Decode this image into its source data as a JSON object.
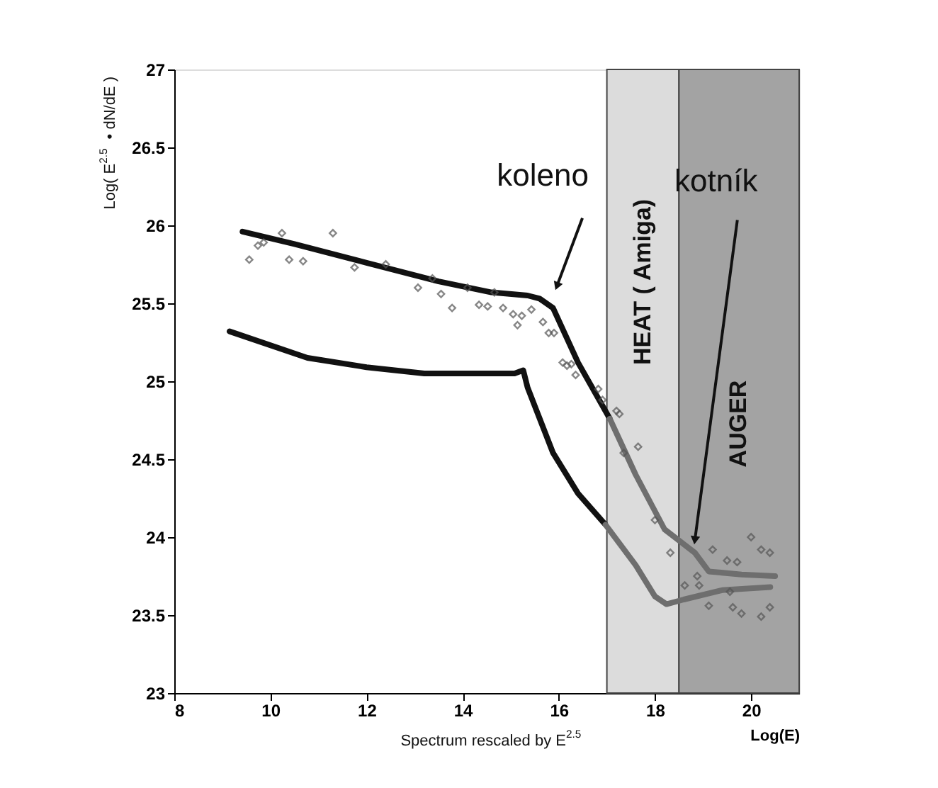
{
  "chart_data": {
    "type": "line",
    "xlabel": "Log(E)",
    "ylabel": "Log( E$^{2.5}$ • dN/dE )",
    "xlim": [
      8,
      21
    ],
    "xticks": [
      8,
      10,
      12,
      14,
      16,
      18,
      20
    ],
    "ylim": [
      23,
      27
    ],
    "yticks": [
      23,
      23.5,
      24,
      24.5,
      25,
      25.5,
      26,
      26.5,
      27
    ],
    "grid": false,
    "line_style": "solid",
    "series": [
      {
        "color": "#111111",
        "x": [
          9.42,
          10.5,
          12.0,
          13.5,
          14.6,
          15.35,
          15.6,
          15.88,
          16.4,
          17.06
        ],
        "values": [
          25.96,
          25.88,
          25.76,
          25.64,
          25.57,
          25.55,
          25.53,
          25.47,
          25.12,
          24.76
        ]
      },
      {
        "color": "#6e6e6e",
        "x": [
          17.06,
          17.6,
          18.2,
          18.83,
          19.12,
          19.8,
          20.5
        ],
        "values": [
          24.76,
          24.4,
          24.05,
          23.9,
          23.78,
          23.76,
          23.75
        ]
      },
      {
        "color": "#111111",
        "x": [
          9.15,
          10.77,
          12.0,
          13.2,
          15.08,
          15.26,
          15.35,
          15.88,
          16.4,
          16.97
        ],
        "values": [
          25.32,
          25.15,
          25.09,
          25.05,
          25.05,
          25.07,
          24.96,
          24.54,
          24.28,
          24.08
        ]
      },
      {
        "color": "#6e6e6e",
        "x": [
          16.97,
          17.6,
          18.0,
          18.24,
          18.6,
          19.4,
          20.4
        ],
        "values": [
          24.08,
          23.82,
          23.62,
          23.57,
          23.6,
          23.66,
          23.68
        ]
      },
      {
        "type": "scatter",
        "color": "#555555",
        "marker": "diamond",
        "x": [
          9.56,
          9.74,
          9.86,
          10.24,
          10.39,
          10.68,
          11.3,
          11.75,
          12.4,
          13.07,
          13.37,
          13.55,
          13.78,
          14.1,
          14.34,
          14.52,
          14.66,
          14.84,
          15.05,
          15.14,
          15.23,
          15.43,
          15.67,
          15.79,
          15.9,
          16.08,
          16.17,
          16.26,
          16.35,
          16.82,
          16.91,
          17.2,
          17.26,
          17.35,
          17.65,
          18.0,
          18.32,
          18.62,
          18.88,
          18.92,
          19.12,
          19.2,
          19.5,
          19.56,
          19.62,
          19.71,
          19.8,
          20.0,
          20.21,
          20.21,
          20.39,
          20.39
        ],
        "values": [
          25.78,
          25.87,
          25.89,
          25.95,
          25.78,
          25.77,
          25.95,
          25.73,
          25.75,
          25.6,
          25.66,
          25.56,
          25.47,
          25.6,
          25.49,
          25.48,
          25.57,
          25.47,
          25.43,
          25.36,
          25.42,
          25.46,
          25.38,
          25.31,
          25.31,
          25.12,
          25.1,
          25.11,
          25.04,
          24.95,
          24.88,
          24.81,
          24.79,
          24.54,
          24.58,
          24.11,
          23.9,
          23.69,
          23.75,
          23.69,
          23.56,
          23.92,
          23.85,
          23.65,
          23.55,
          23.84,
          23.51,
          24.0,
          23.92,
          23.49,
          23.9,
          23.55
        ]
      }
    ],
    "bands": [
      {
        "axis": "x",
        "from": 17,
        "to": 18.5,
        "label": "HEAT ( Amiga)",
        "color": "#dcdcdc"
      },
      {
        "axis": "x",
        "from": 18.5,
        "to": 21,
        "label": "AUGER",
        "color": "#a3a3a3"
      }
    ],
    "annotations": [
      {
        "text": "koleno",
        "x": 15.96,
        "y": 25.61
      },
      {
        "text": "kotník",
        "x": 18.83,
        "y": 23.98
      },
      "Spectrum rescaled by E$^{2.5}$"
    ]
  }
}
